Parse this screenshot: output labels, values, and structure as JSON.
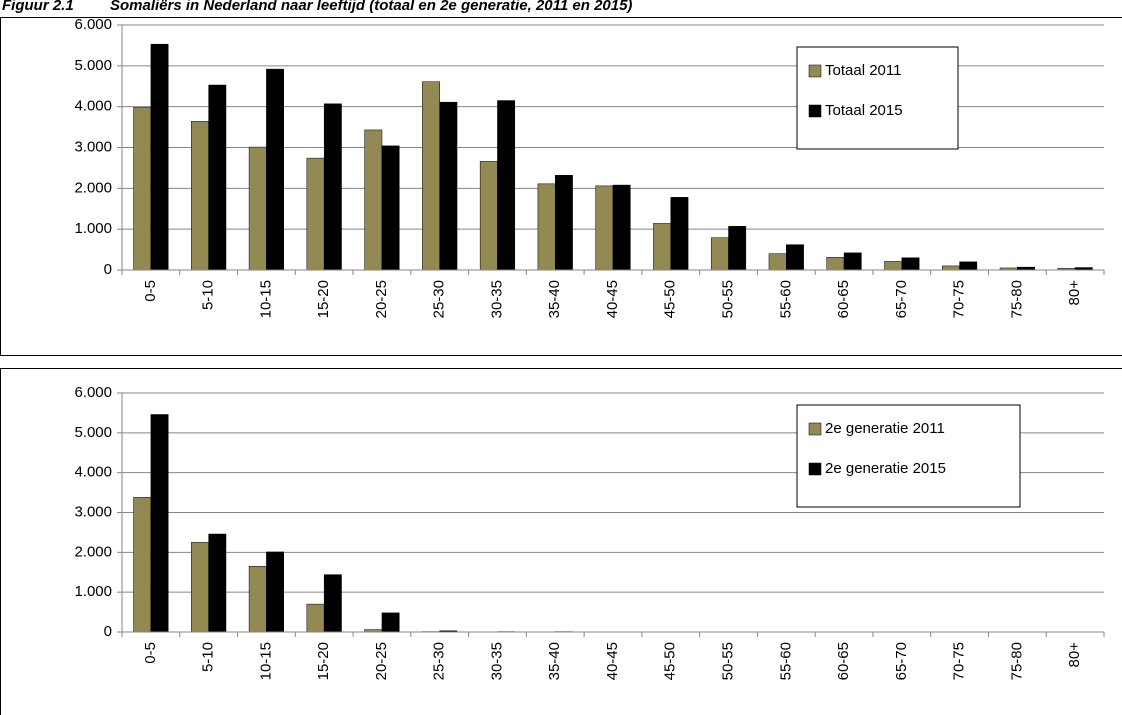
{
  "figure_label": "Figuur 2.1",
  "title": "Somaliërs in Nederland naar leeftijd (totaal en 2e generatie, 2011 en 2015)",
  "chart_data": [
    {
      "type": "bar",
      "categories": [
        "0-5",
        "5-10",
        "10-15",
        "15-20",
        "20-25",
        "25-30",
        "30-35",
        "35-40",
        "40-45",
        "45-50",
        "50-55",
        "55-60",
        "60-65",
        "65-70",
        "70-75",
        "75-80",
        "80+"
      ],
      "series": [
        {
          "name": "Totaal 2011",
          "color": "#938953",
          "values": [
            3980,
            3640,
            3010,
            2740,
            3430,
            4610,
            2660,
            2110,
            2060,
            1140,
            790,
            400,
            310,
            210,
            100,
            50,
            40
          ]
        },
        {
          "name": "Totaal 2015",
          "color": "#000000",
          "values": [
            5530,
            4530,
            4920,
            4070,
            3040,
            4110,
            4150,
            2320,
            2080,
            1780,
            1070,
            620,
            420,
            300,
            200,
            70,
            60
          ]
        }
      ],
      "ylim": [
        0,
        6000
      ],
      "yticks": [
        0,
        {
          "value": 1000,
          "label": "1.000"
        },
        {
          "value": 2000,
          "label": "2.000"
        },
        {
          "value": 3000,
          "label": "3.000"
        },
        {
          "value": 4000,
          "label": "4.000"
        },
        {
          "value": 5000,
          "label": "5.000"
        },
        {
          "value": 6000,
          "label": "6.000"
        }
      ],
      "grid": true,
      "legend": "upper right"
    },
    {
      "type": "bar",
      "categories": [
        "0-5",
        "5-10",
        "10-15",
        "15-20",
        "20-25",
        "25-30",
        "30-35",
        "35-40",
        "40-45",
        "45-50",
        "50-55",
        "55-60",
        "60-65",
        "65-70",
        "70-75",
        "75-80",
        "80+"
      ],
      "series": [
        {
          "name": "2e generatie 2011",
          "color": "#938953",
          "values": [
            3380,
            2250,
            1650,
            700,
            60,
            10,
            5,
            5,
            5,
            5,
            0,
            5,
            0,
            0,
            0,
            0,
            0
          ]
        },
        {
          "name": "2e generatie 2015",
          "color": "#000000",
          "values": [
            5460,
            2460,
            2010,
            1440,
            480,
            30,
            10,
            10,
            5,
            5,
            0,
            0,
            0,
            0,
            0,
            0,
            0
          ]
        }
      ],
      "ylim": [
        0,
        6000
      ],
      "yticks": [
        0,
        {
          "value": 1000,
          "label": "1.000"
        },
        {
          "value": 2000,
          "label": "2.000"
        },
        {
          "value": 3000,
          "label": "3.000"
        },
        {
          "value": 4000,
          "label": "4.000"
        },
        {
          "value": 5000,
          "label": "5.000"
        },
        {
          "value": 6000,
          "label": "6.000"
        }
      ],
      "grid": true,
      "legend": "upper right"
    }
  ]
}
